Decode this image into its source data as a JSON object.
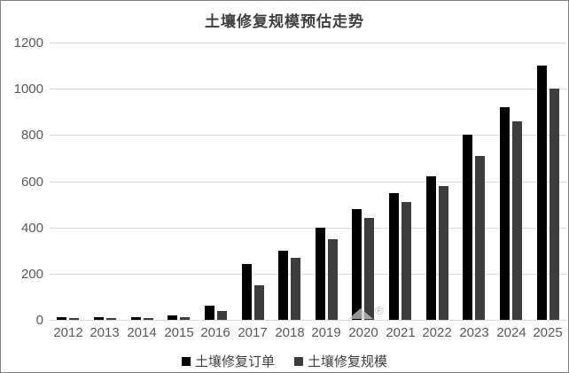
{
  "title": "土壤修复规模预估走势",
  "watermark": {
    "symbol": "®"
  },
  "colors": {
    "background": "#ffffff",
    "frame_border": "#808080",
    "title_text": "#404040",
    "axis_text": "#595959",
    "gridline": "#d9d9d9",
    "series_orders": "#000000",
    "series_scale": "#3d3d3d",
    "watermark": "#c6c6c6"
  },
  "chart_data": {
    "type": "bar",
    "title": "土壤修复规模预估走势",
    "xlabel": "",
    "ylabel": "",
    "categories": [
      "2012",
      "2013",
      "2014",
      "2015",
      "2016",
      "2017",
      "2018",
      "2019",
      "2020",
      "2021",
      "2022",
      "2023",
      "2024",
      "2025"
    ],
    "series": [
      {
        "name": "土壤修复订单",
        "color": "#000000",
        "values": [
          10,
          10,
          10,
          20,
          60,
          240,
          300,
          400,
          480,
          550,
          620,
          800,
          920,
          1100
        ]
      },
      {
        "name": "土壤修复规模",
        "color": "#3d3d3d",
        "values": [
          5,
          8,
          8,
          12,
          40,
          150,
          270,
          350,
          440,
          510,
          580,
          710,
          860,
          1000
        ]
      }
    ],
    "ylim": [
      0,
      1200
    ],
    "ytick_interval": 200,
    "yticks": [
      0,
      200,
      400,
      600,
      800,
      1000,
      1200
    ],
    "grid": true,
    "legend_position": "bottom"
  }
}
